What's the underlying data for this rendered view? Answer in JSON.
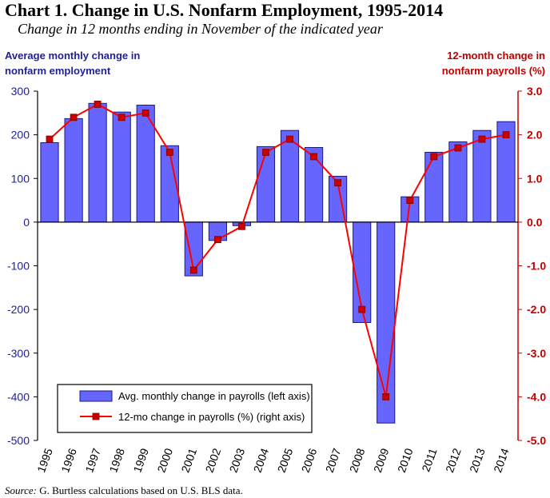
{
  "header": {
    "title": "Chart 1. Change in U.S. Nonfarm Employment, 1995-2014",
    "subtitle": "Change in 12 months ending in November of the indicated year"
  },
  "axes": {
    "left_label": "Average monthly change in nonfarm employment",
    "right_label": "12-month change in nonfarm payrolls (%)"
  },
  "source": {
    "label": "Source:",
    "text": "G. Burtless  calculations  based on U.S. BLS data."
  },
  "colors": {
    "bar_fill": "#6666ff",
    "bar_stroke": "#1a1a80",
    "line": "#ff0000",
    "marker": "#cc0000",
    "left_axis_text": "#1f1f9a",
    "right_axis_text": "#c00000"
  },
  "chart_data": {
    "type": "bar",
    "categories": [
      "1995",
      "1996",
      "1997",
      "1998",
      "1999",
      "2000",
      "2001",
      "2002",
      "2003",
      "2004",
      "2005",
      "2006",
      "2007",
      "2008",
      "2009",
      "2010",
      "2011",
      "2012",
      "2013",
      "2014"
    ],
    "series": [
      {
        "name": "Avg. monthly change in payrolls (left axis)",
        "type": "bar",
        "axis": "left",
        "values": [
          182,
          237,
          272,
          252,
          268,
          175,
          -123,
          -42,
          -8,
          173,
          210,
          171,
          105,
          -230,
          -460,
          58,
          160,
          184,
          210,
          230
        ]
      },
      {
        "name": "12-mo change in payrolls (%) (right axis)",
        "type": "line",
        "axis": "right",
        "values": [
          1.9,
          2.4,
          2.7,
          2.4,
          2.5,
          1.6,
          -1.1,
          -0.4,
          -0.1,
          1.6,
          1.9,
          1.5,
          0.9,
          -2.0,
          -4.0,
          0.5,
          1.5,
          1.7,
          1.9,
          2.0
        ]
      }
    ],
    "ylim_left": [
      -500,
      300
    ],
    "yticks_left": [
      "300",
      "200",
      "100",
      "0",
      "-100",
      "-200",
      "-300",
      "-400",
      "-500"
    ],
    "ylim_right": [
      -5.0,
      3.0
    ],
    "yticks_right": [
      "3.0",
      "2.0",
      "1.0",
      "0.0",
      "-1.0",
      "-2.0",
      "-3.0",
      "-4.0",
      "-5.0"
    ],
    "legend_position": "bottom-left"
  }
}
